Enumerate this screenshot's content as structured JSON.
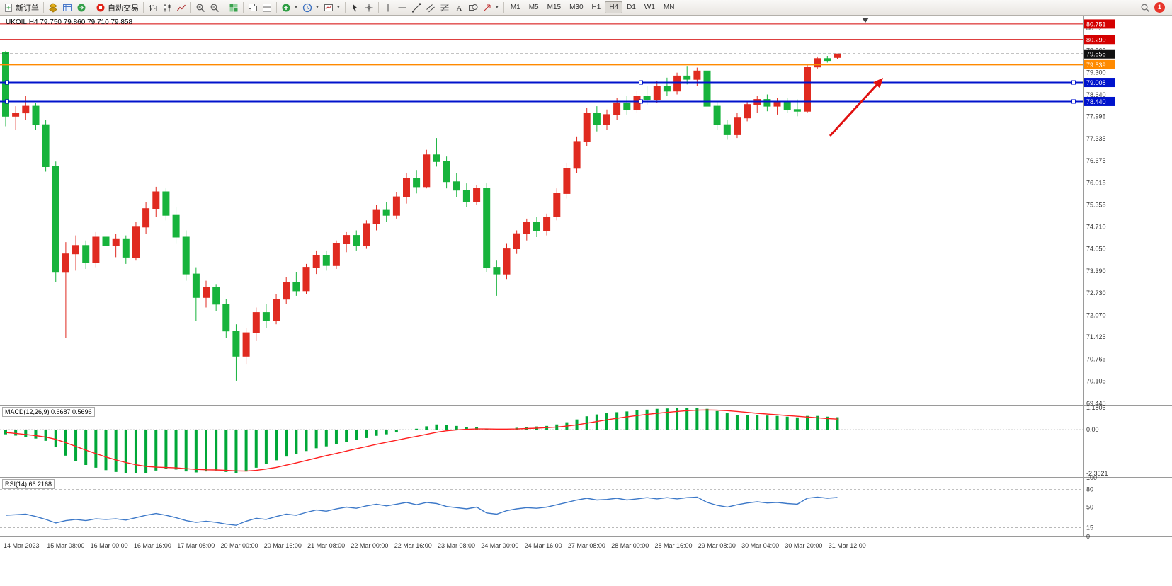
{
  "toolbar": {
    "new_order_label": "新订单",
    "autotrade_label": "自动交易",
    "text_tool_label": "A",
    "timeframes": [
      "M1",
      "M5",
      "M15",
      "M30",
      "H1",
      "H4",
      "D1",
      "W1",
      "MN"
    ],
    "active_timeframe": "H4",
    "notification_count": "1"
  },
  "chart_data": [
    {
      "type": "candlestick",
      "title": "UKOIL,H4 79.750 79.860 79.710 79.858",
      "symbol": "UKOIL",
      "period": "H4",
      "ylim": [
        69.4,
        80.96
      ],
      "up_color": "#e02a20",
      "down_color": "#17b33c",
      "y_ticks": [
        "80.620",
        "79.960",
        "79.300",
        "78.640",
        "77.995",
        "77.335",
        "76.675",
        "76.015",
        "75.355",
        "74.710",
        "74.050",
        "73.390",
        "72.730",
        "72.070",
        "71.425",
        "70.765",
        "70.105",
        "69.445"
      ],
      "x_labels": [
        "14 Mar 2023",
        "15 Mar 08:00",
        "16 Mar 00:00",
        "16 Mar 16:00",
        "17 Mar 08:00",
        "20 Mar 00:00",
        "20 Mar 16:00",
        "21 Mar 08:00",
        "22 Mar 00:00",
        "22 Mar 16:00",
        "23 Mar 08:00",
        "24 Mar 00:00",
        "24 Mar 16:00",
        "27 Mar 08:00",
        "28 Mar 00:00",
        "28 Mar 16:00",
        "29 Mar 08:00",
        "30 Mar 04:00",
        "30 Mar 20:00",
        "31 Mar 12:00"
      ],
      "hlines": [
        {
          "price": 80.751,
          "label": "80.751",
          "color": "#d40000",
          "width": 1
        },
        {
          "price": 80.29,
          "label": "80.290",
          "color": "#d40000",
          "width": 1
        },
        {
          "price": 79.539,
          "label": "79.539",
          "color": "#ff8a00",
          "width": 2
        },
        {
          "price": 79.008,
          "label": "79.008",
          "color": "#0013cc",
          "width": 2,
          "handles": true
        },
        {
          "price": 78.44,
          "label": "78.440",
          "color": "#0013cc",
          "width": 2,
          "handles": true
        }
      ],
      "current_price": {
        "value": 79.858,
        "label": "79.858",
        "color": "#111111"
      },
      "arrow": {
        "color": "#e01010"
      },
      "ohlc": [
        [
          79.9,
          79.95,
          77.7,
          78.0
        ],
        [
          78.0,
          78.3,
          77.6,
          78.1
        ],
        [
          78.1,
          78.6,
          77.9,
          78.3
        ],
        [
          78.3,
          78.4,
          77.6,
          77.75
        ],
        [
          77.75,
          77.9,
          76.35,
          76.5
        ],
        [
          76.5,
          76.65,
          73.05,
          73.35
        ],
        [
          73.35,
          74.25,
          71.4,
          73.9
        ],
        [
          73.9,
          74.45,
          73.4,
          74.15
        ],
        [
          74.15,
          74.3,
          73.45,
          73.65
        ],
        [
          73.65,
          74.55,
          73.5,
          74.4
        ],
        [
          74.4,
          74.7,
          73.9,
          74.15
        ],
        [
          74.15,
          74.5,
          73.8,
          74.35
        ],
        [
          74.35,
          74.45,
          73.6,
          73.8
        ],
        [
          73.8,
          74.85,
          73.7,
          74.7
        ],
        [
          74.7,
          75.45,
          74.5,
          75.25
        ],
        [
          75.25,
          75.9,
          75.0,
          75.75
        ],
        [
          75.75,
          75.85,
          74.9,
          75.05
        ],
        [
          75.05,
          75.3,
          74.2,
          74.4
        ],
        [
          74.4,
          74.6,
          73.1,
          73.3
        ],
        [
          73.3,
          73.5,
          71.9,
          72.6
        ],
        [
          72.6,
          73.1,
          72.3,
          72.9
        ],
        [
          72.9,
          73.0,
          72.2,
          72.4
        ],
        [
          72.4,
          72.55,
          71.4,
          71.6
        ],
        [
          71.6,
          71.8,
          70.12,
          70.85
        ],
        [
          70.85,
          71.7,
          70.6,
          71.55
        ],
        [
          71.55,
          72.3,
          71.3,
          72.15
        ],
        [
          72.15,
          72.4,
          71.7,
          71.9
        ],
        [
          71.9,
          72.7,
          71.8,
          72.55
        ],
        [
          72.55,
          73.2,
          72.4,
          73.05
        ],
        [
          73.05,
          73.35,
          72.65,
          72.8
        ],
        [
          72.8,
          73.6,
          72.7,
          73.5
        ],
        [
          73.5,
          74.0,
          73.3,
          73.85
        ],
        [
          73.85,
          74.0,
          73.4,
          73.55
        ],
        [
          73.55,
          74.3,
          73.45,
          74.2
        ],
        [
          74.2,
          74.55,
          73.95,
          74.45
        ],
        [
          74.45,
          74.6,
          74.0,
          74.15
        ],
        [
          74.15,
          74.9,
          74.05,
          74.8
        ],
        [
          74.8,
          75.35,
          74.6,
          75.2
        ],
        [
          75.2,
          75.45,
          74.85,
          75.05
        ],
        [
          75.05,
          75.75,
          74.95,
          75.6
        ],
        [
          75.6,
          76.3,
          75.4,
          76.15
        ],
        [
          76.15,
          76.4,
          75.7,
          75.9
        ],
        [
          75.9,
          77.0,
          75.85,
          76.85
        ],
        [
          76.85,
          77.35,
          76.5,
          76.65
        ],
        [
          76.65,
          76.8,
          75.85,
          76.05
        ],
        [
          76.05,
          76.3,
          75.6,
          75.8
        ],
        [
          75.8,
          76.0,
          75.3,
          75.45
        ],
        [
          75.45,
          75.95,
          75.35,
          75.85
        ],
        [
          75.85,
          76.0,
          73.35,
          73.5
        ],
        [
          73.5,
          73.7,
          72.65,
          73.3
        ],
        [
          73.3,
          74.2,
          73.15,
          74.05
        ],
        [
          74.05,
          74.6,
          73.9,
          74.5
        ],
        [
          74.5,
          74.95,
          74.3,
          74.85
        ],
        [
          74.85,
          75.0,
          74.4,
          74.6
        ],
        [
          74.6,
          75.1,
          74.45,
          75.0
        ],
        [
          75.0,
          75.85,
          74.9,
          75.7
        ],
        [
          75.7,
          76.6,
          75.55,
          76.45
        ],
        [
          76.45,
          77.4,
          76.3,
          77.25
        ],
        [
          77.25,
          78.25,
          77.1,
          78.1
        ],
        [
          78.1,
          78.3,
          77.55,
          77.75
        ],
        [
          77.75,
          78.2,
          77.6,
          78.05
        ],
        [
          78.05,
          78.55,
          77.9,
          78.4
        ],
        [
          78.4,
          78.6,
          78.05,
          78.2
        ],
        [
          78.2,
          78.75,
          78.1,
          78.6
        ],
        [
          78.6,
          78.9,
          78.35,
          78.5
        ],
        [
          78.5,
          79.05,
          78.4,
          78.9
        ],
        [
          78.9,
          79.15,
          78.6,
          78.75
        ],
        [
          78.75,
          79.3,
          78.65,
          79.2
        ],
        [
          79.2,
          79.5,
          78.95,
          79.1
        ],
        [
          79.1,
          79.45,
          78.9,
          79.35
        ],
        [
          79.35,
          79.4,
          78.15,
          78.3
        ],
        [
          78.3,
          78.45,
          77.6,
          77.75
        ],
        [
          77.75,
          77.9,
          77.3,
          77.45
        ],
        [
          77.45,
          78.1,
          77.35,
          77.95
        ],
        [
          77.95,
          78.45,
          77.85,
          78.35
        ],
        [
          78.35,
          78.6,
          78.1,
          78.5
        ],
        [
          78.5,
          78.65,
          78.15,
          78.3
        ],
        [
          78.3,
          78.55,
          78.05,
          78.45
        ],
        [
          78.45,
          78.55,
          78.1,
          78.2
        ],
        [
          78.2,
          78.5,
          78.0,
          78.15
        ],
        [
          78.15,
          79.55,
          78.1,
          79.47
        ],
        [
          79.47,
          79.78,
          79.4,
          79.72
        ],
        [
          79.72,
          79.8,
          79.6,
          79.66
        ],
        [
          79.75,
          79.86,
          79.71,
          79.858
        ]
      ]
    },
    {
      "type": "bar",
      "name": "MACD",
      "label": "MACD(12,26,9) 0.6687 0.5696",
      "ylim": [
        -2.55,
        1.3
      ],
      "hist_color": "#00a838",
      "signal_color": "#ff1f1f",
      "y_ticks": [
        {
          "v": 1.1806,
          "label": "1.1806"
        },
        {
          "v": 0,
          "label": "0.00"
        },
        {
          "v": -2.3521,
          "label": "-2.3521"
        }
      ],
      "histogram": [
        -0.25,
        -0.32,
        -0.4,
        -0.48,
        -0.6,
        -0.95,
        -1.4,
        -1.7,
        -1.9,
        -2.05,
        -2.18,
        -2.28,
        -2.34,
        -2.35,
        -2.32,
        -2.2,
        -2.1,
        -2.15,
        -2.25,
        -2.3,
        -2.25,
        -2.2,
        -2.28,
        -2.35,
        -2.25,
        -2.05,
        -1.85,
        -1.65,
        -1.45,
        -1.3,
        -1.15,
        -1.0,
        -0.9,
        -0.78,
        -0.65,
        -0.55,
        -0.45,
        -0.33,
        -0.25,
        -0.15,
        -0.02,
        0.05,
        0.18,
        0.28,
        0.25,
        0.2,
        0.12,
        0.12,
        0.02,
        -0.02,
        0.04,
        0.1,
        0.15,
        0.17,
        0.2,
        0.28,
        0.4,
        0.55,
        0.72,
        0.82,
        0.88,
        0.94,
        0.98,
        1.05,
        1.08,
        1.12,
        1.14,
        1.16,
        1.18,
        1.18,
        1.12,
        1.0,
        0.88,
        0.8,
        0.78,
        0.78,
        0.76,
        0.74,
        0.7,
        0.66,
        0.74,
        0.74,
        0.7,
        0.6687
      ],
      "signal": [
        -0.15,
        -0.2,
        -0.26,
        -0.32,
        -0.4,
        -0.52,
        -0.7,
        -0.9,
        -1.1,
        -1.29,
        -1.47,
        -1.63,
        -1.77,
        -1.89,
        -1.98,
        -2.02,
        -2.04,
        -2.06,
        -2.1,
        -2.14,
        -2.16,
        -2.17,
        -2.19,
        -2.22,
        -2.23,
        -2.19,
        -2.12,
        -2.03,
        -1.91,
        -1.79,
        -1.66,
        -1.53,
        -1.4,
        -1.28,
        -1.15,
        -1.03,
        -0.91,
        -0.79,
        -0.68,
        -0.57,
        -0.46,
        -0.36,
        -0.25,
        -0.14,
        -0.06,
        -0.01,
        0.02,
        0.04,
        0.04,
        0.03,
        0.03,
        0.04,
        0.06,
        0.08,
        0.11,
        0.14,
        0.19,
        0.26,
        0.35,
        0.44,
        0.53,
        0.61,
        0.69,
        0.76,
        0.82,
        0.88,
        0.93,
        0.98,
        1.02,
        1.05,
        1.06,
        1.05,
        1.02,
        0.98,
        0.93,
        0.88,
        0.84,
        0.8,
        0.76,
        0.72,
        0.68,
        0.64,
        0.6,
        0.5696
      ]
    },
    {
      "type": "line",
      "name": "RSI",
      "label": "RSI(14) 66.2168",
      "ylim": [
        0,
        100
      ],
      "color": "#3c78c8",
      "levels": [
        80,
        50,
        15
      ],
      "y_ticks": [
        {
          "v": 100,
          "label": "100"
        },
        {
          "v": 80,
          "label": "80"
        },
        {
          "v": 50,
          "label": "50"
        },
        {
          "v": 15,
          "label": "15"
        },
        {
          "v": 0,
          "label": "0"
        }
      ],
      "values": [
        36,
        37,
        38,
        34,
        29,
        23,
        27,
        29,
        27,
        30,
        29,
        30,
        28,
        32,
        36,
        39,
        36,
        32,
        27,
        24,
        26,
        24,
        21,
        19,
        26,
        31,
        29,
        34,
        38,
        36,
        41,
        45,
        43,
        47,
        50,
        48,
        52,
        55,
        52,
        55,
        58,
        54,
        58,
        56,
        51,
        49,
        47,
        50,
        40,
        38,
        44,
        47,
        49,
        48,
        50,
        54,
        58,
        62,
        65,
        62,
        63,
        65,
        62,
        64,
        66,
        64,
        66,
        64,
        66,
        67,
        58,
        53,
        50,
        54,
        57,
        59,
        57,
        58,
        56,
        55,
        65,
        67,
        65,
        66.2168
      ]
    }
  ]
}
